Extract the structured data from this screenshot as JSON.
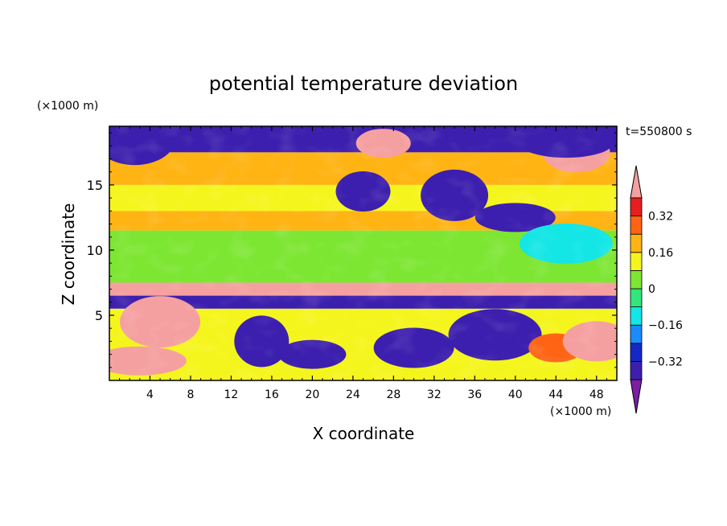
{
  "chart_data": {
    "type": "heatmap",
    "title": "potential temperature deviation",
    "xlabel": "X coordinate",
    "ylabel": "Z coordinate",
    "x_unit": "(×1000 m)",
    "y_unit": "(×1000 m)",
    "time_label": "t=550800 s",
    "xlim": [
      0,
      50
    ],
    "ylim": [
      0,
      19.5
    ],
    "x_ticks": [
      4,
      8,
      12,
      16,
      20,
      24,
      28,
      32,
      36,
      40,
      44,
      48
    ],
    "y_ticks": [
      5,
      10,
      15
    ],
    "colorbar": {
      "levels": [
        -0.4,
        -0.32,
        -0.24,
        -0.16,
        -0.08,
        0,
        0.08,
        0.16,
        0.24,
        0.32,
        0.4
      ],
      "colors": [
        "#7a1fa2",
        "#3c1fae",
        "#1428c8",
        "#1a8cff",
        "#14e6e6",
        "#32e67d",
        "#7de632",
        "#f5f51e",
        "#ffb414",
        "#ff6414",
        "#e61e1e",
        "#f5a0a0"
      ],
      "tick_values": [
        0.32,
        0.16,
        0,
        -0.16,
        -0.32
      ],
      "tick_labels": [
        "0.32",
        "0.16",
        "0",
        "−0.16",
        "−0.32"
      ],
      "extend": "both"
    },
    "layers": [
      {
        "z_range": [
          17.5,
          19.5
        ],
        "x_range": [
          0,
          50
        ],
        "description_value": -0.4
      },
      {
        "z_range": [
          15,
          17.5
        ],
        "x_range": [
          0,
          50
        ],
        "description_value": 0.2
      },
      {
        "z_range": [
          13,
          15
        ],
        "x_range": [
          0,
          50
        ],
        "description_value": 0.1
      },
      {
        "z_range": [
          11.5,
          13
        ],
        "x_range": [
          0,
          50
        ],
        "description_value": 0.2
      },
      {
        "z_range": [
          7.5,
          11.5
        ],
        "x_range": [
          0,
          50
        ],
        "description_value": 0.05
      },
      {
        "z_range": [
          6,
          7.5
        ],
        "x_range": [
          0,
          50
        ],
        "description_value": 0.4
      },
      {
        "z_range": [
          5.5,
          6.5
        ],
        "x_range": [
          0,
          50
        ],
        "description_value": -0.4
      },
      {
        "z_range": [
          0,
          5.5
        ],
        "x_range": [
          0,
          50
        ],
        "description_value": 0.1
      }
    ],
    "features": [
      {
        "x": 27,
        "z": 18.2,
        "value": 0.4
      },
      {
        "x": 46,
        "z": 17.5,
        "value": 0.4
      },
      {
        "x": 2.5,
        "z": 18.5,
        "value": -0.4
      },
      {
        "x": 45,
        "z": 18.2,
        "value": -0.4
      },
      {
        "x": 25,
        "z": 14.5,
        "value": -0.4
      },
      {
        "x": 34,
        "z": 14.2,
        "value": -0.4
      },
      {
        "x": 40,
        "z": 12.5,
        "value": -0.4
      },
      {
        "x": 45,
        "z": 10.5,
        "value": -0.16
      },
      {
        "x": 15,
        "z": 3,
        "value": -0.4
      },
      {
        "x": 20,
        "z": 2,
        "value": -0.4
      },
      {
        "x": 30,
        "z": 2.5,
        "value": -0.4
      },
      {
        "x": 38,
        "z": 3.5,
        "value": -0.4
      },
      {
        "x": 44,
        "z": 2.5,
        "value": 0.24
      },
      {
        "x": 48,
        "z": 3,
        "value": 0.4
      },
      {
        "x": 5,
        "z": 4.5,
        "value": 0.4
      },
      {
        "x": 3,
        "z": 1.5,
        "value": 0.4
      }
    ]
  }
}
